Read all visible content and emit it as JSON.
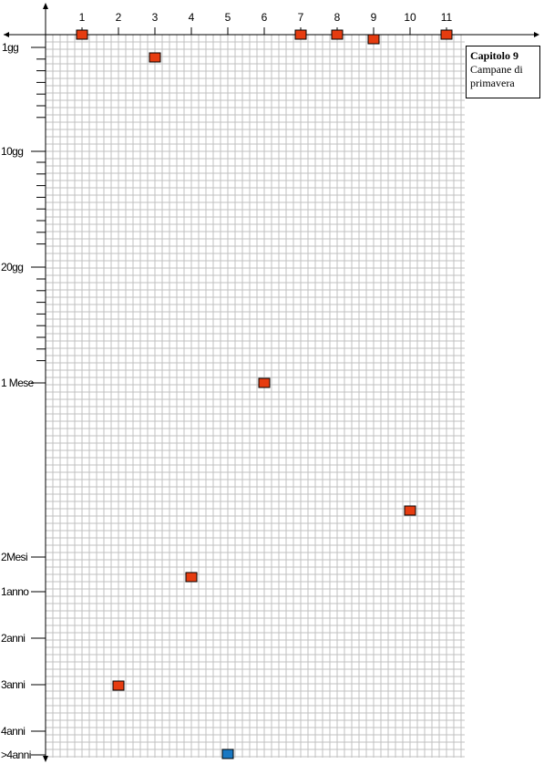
{
  "info_box": {
    "title": "Capitolo 9",
    "subtitle": "Campane di primavera"
  },
  "colors": {
    "marker_orange": "#e63c10",
    "marker_blue": "#1a78c2",
    "grid": "#c0c0c0",
    "axis": "#000000"
  },
  "chart_data": {
    "type": "scatter",
    "title": "",
    "xlabel": "",
    "ylabel": "",
    "x_ticks": [
      "1",
      "2",
      "3",
      "4",
      "5",
      "6",
      "7",
      "8",
      "9",
      "10",
      "11"
    ],
    "y_ticks": [
      "1gg",
      "10gg",
      "20gg",
      "1 Mese",
      "2Mesi",
      "1anno",
      "2anni",
      "3anni",
      "4anni",
      ">4anni"
    ],
    "grid": true,
    "points": [
      {
        "x": 1,
        "y": "1gg",
        "color": "orange"
      },
      {
        "x": 2,
        "y": "3anni",
        "color": "orange"
      },
      {
        "x": 3,
        "y": "3gg",
        "color": "orange"
      },
      {
        "x": 4,
        "y": "1anno (slightly above)",
        "color": "orange"
      },
      {
        "x": 5,
        "y": ">4anni",
        "color": "blue"
      },
      {
        "x": 6,
        "y": "1 Mese",
        "color": "orange"
      },
      {
        "x": 7,
        "y": "1gg",
        "color": "orange"
      },
      {
        "x": 8,
        "y": "1gg",
        "color": "orange"
      },
      {
        "x": 9,
        "y": "1gg",
        "color": "orange"
      },
      {
        "x": 10,
        "y": "between 1 Mese and 2Mesi",
        "color": "orange"
      },
      {
        "x": 11,
        "y": "1gg",
        "color": "orange"
      }
    ]
  }
}
